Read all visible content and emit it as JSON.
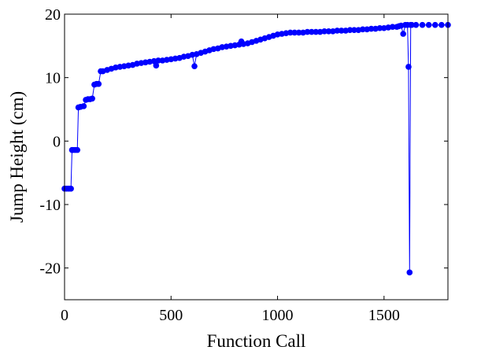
{
  "chart_data": {
    "type": "line",
    "title": "",
    "xlabel": "Function Call",
    "ylabel": "Jump Height (cm)",
    "xlim": [
      0,
      1800
    ],
    "ylim": [
      -25,
      20
    ],
    "x_ticks": [
      0,
      500,
      1000,
      1500
    ],
    "y_ticks": [
      -20,
      -10,
      0,
      10,
      20
    ],
    "grid": false,
    "legend": "none",
    "colors": {
      "series": "#0000ff",
      "axes": "#000000",
      "background": "#ffffff"
    },
    "series": [
      {
        "marker": "filled-circle",
        "x": [
          0,
          10,
          20,
          30,
          35,
          40,
          50,
          60,
          65,
          75,
          90,
          100,
          110,
          120,
          130,
          140,
          150,
          160,
          170,
          180,
          200,
          220,
          240,
          260,
          280,
          300,
          320,
          340,
          360,
          380,
          400,
          420,
          430,
          440,
          460,
          480,
          500,
          520,
          540,
          560,
          580,
          600,
          610,
          620,
          640,
          660,
          680,
          700,
          720,
          740,
          760,
          780,
          800,
          820,
          830,
          840,
          860,
          880,
          900,
          920,
          940,
          960,
          980,
          1000,
          1020,
          1040,
          1060,
          1080,
          1100,
          1120,
          1140,
          1160,
          1180,
          1200,
          1220,
          1240,
          1260,
          1280,
          1300,
          1320,
          1340,
          1360,
          1380,
          1400,
          1420,
          1440,
          1460,
          1480,
          1500,
          1520,
          1540,
          1560,
          1570,
          1580,
          1590,
          1600,
          1610,
          1615,
          1620,
          1625,
          1630,
          1650,
          1680,
          1710,
          1740,
          1770,
          1800
        ],
        "y": [
          -7.5,
          -7.5,
          -7.5,
          -7.5,
          -1.4,
          -1.4,
          -1.4,
          -1.4,
          5.3,
          5.4,
          5.5,
          6.5,
          6.6,
          6.6,
          6.7,
          8.9,
          9.0,
          9.0,
          11.0,
          11.0,
          11.2,
          11.4,
          11.6,
          11.7,
          11.8,
          11.9,
          12.0,
          12.2,
          12.3,
          12.4,
          12.5,
          12.6,
          11.9,
          12.7,
          12.7,
          12.8,
          12.9,
          13.0,
          13.1,
          13.3,
          13.4,
          13.6,
          11.8,
          13.7,
          13.9,
          14.1,
          14.3,
          14.5,
          14.6,
          14.8,
          14.9,
          15.0,
          15.1,
          15.2,
          15.7,
          15.3,
          15.4,
          15.6,
          15.8,
          16.0,
          16.2,
          16.4,
          16.6,
          16.8,
          16.9,
          17.0,
          17.1,
          17.1,
          17.1,
          17.1,
          17.2,
          17.2,
          17.2,
          17.2,
          17.3,
          17.3,
          17.3,
          17.4,
          17.4,
          17.4,
          17.5,
          17.5,
          17.5,
          17.6,
          17.6,
          17.7,
          17.7,
          17.8,
          17.8,
          17.9,
          18.0,
          18.0,
          18.1,
          18.2,
          16.9,
          18.3,
          18.3,
          11.7,
          -20.7,
          18.3,
          18.3,
          18.3,
          18.3,
          18.3,
          18.3,
          18.3,
          18.3
        ]
      }
    ]
  }
}
